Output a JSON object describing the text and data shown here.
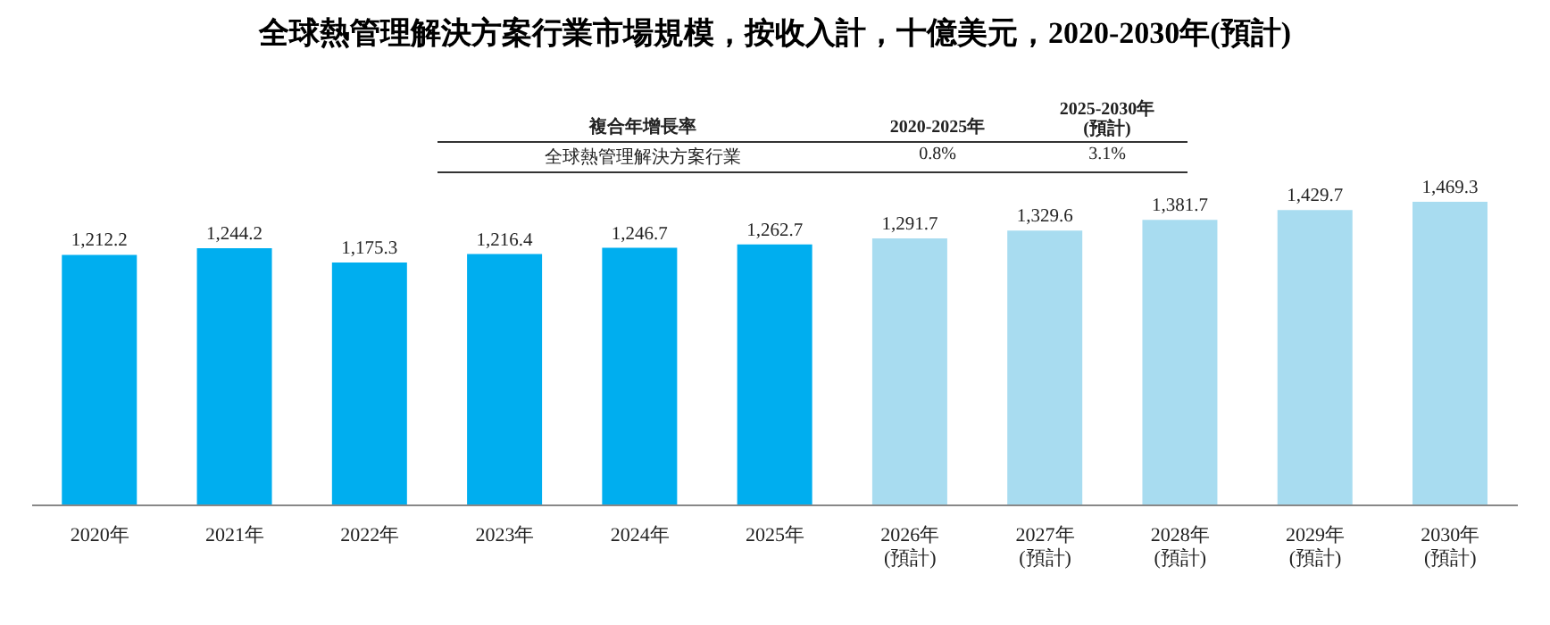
{
  "chart_data": {
    "type": "bar",
    "title": "全球熱管理解決方案行業市場規模，按收入計，十億美元，2020-2030年(預計)",
    "categories": [
      "2020年",
      "2021年",
      "2022年",
      "2023年",
      "2024年",
      "2025年",
      "2026年\n(預計)",
      "2027年\n(預計)",
      "2028年\n(預計)",
      "2029年\n(預計)",
      "2030年\n(預計)"
    ],
    "values": [
      1212.2,
      1244.2,
      1175.3,
      1216.4,
      1246.7,
      1262.7,
      1291.7,
      1329.6,
      1381.7,
      1429.7,
      1469.3
    ],
    "value_labels": [
      "1,212.2",
      "1,244.2",
      "1,175.3",
      "1,216.4",
      "1,246.7",
      "1,262.7",
      "1,291.7",
      "1,329.6",
      "1,381.7",
      "1,429.7",
      "1,469.3"
    ],
    "colors": [
      "#00aeef",
      "#00aeef",
      "#00aeef",
      "#00aeef",
      "#00aeef",
      "#00aeef",
      "#a8dcf0",
      "#a8dcf0",
      "#a8dcf0",
      "#a8dcf0",
      "#a8dcf0"
    ],
    "annotations": [
      "複合年增長率",
      "2020-2025年",
      "2025-2030年\n(預計)",
      "全球熱管理解決方案行業",
      "0.8%",
      "3.1%"
    ]
  }
}
